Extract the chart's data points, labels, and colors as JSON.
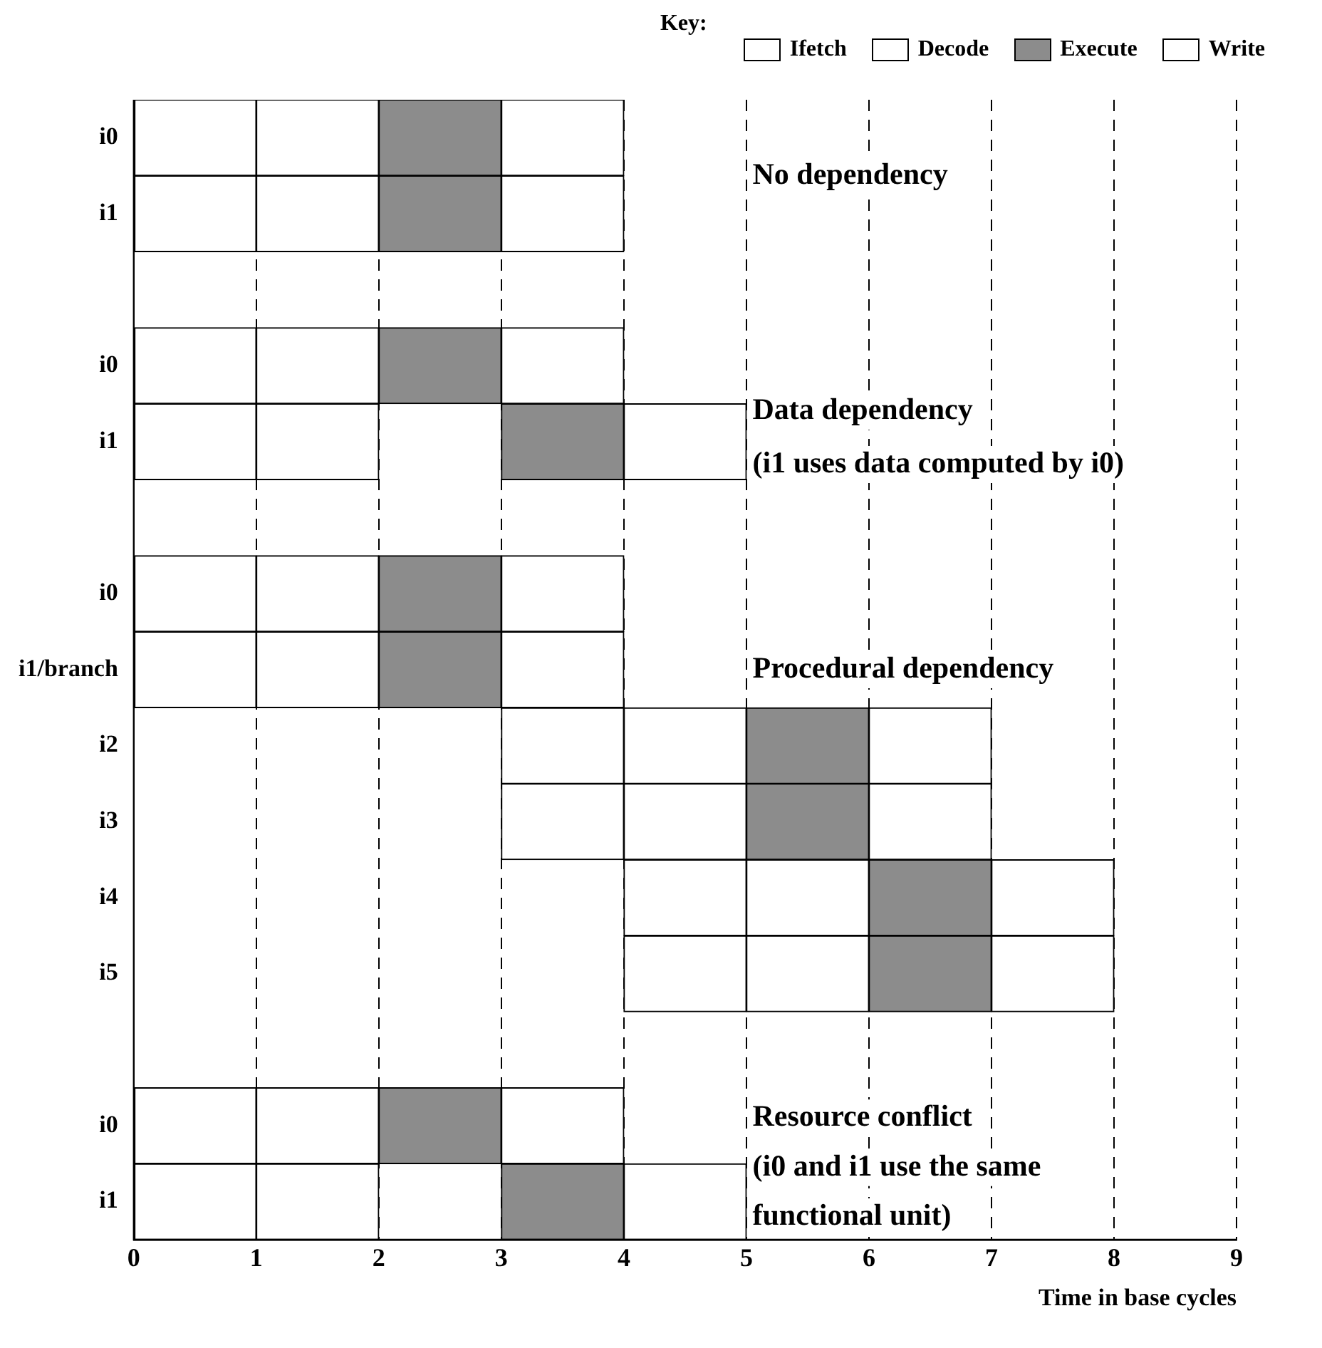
{
  "chart_data": {
    "type": "bar",
    "orientation": "horizontal",
    "stacked": false,
    "categories": [
      "i0",
      "i1",
      null,
      "i0",
      "i1",
      null,
      "i0",
      "i1/branch",
      "i2",
      "i3",
      "i4",
      "i5",
      null,
      "i0",
      "i1"
    ],
    "series": [
      {
        "name": "Ifetch",
        "color": "#ffffff",
        "values": [
          1,
          1,
          null,
          1,
          1,
          null,
          1,
          1,
          1,
          1,
          1,
          1,
          null,
          1,
          1
        ],
        "base": [
          0,
          0,
          null,
          0,
          0,
          null,
          0,
          0,
          3,
          3,
          4,
          4,
          null,
          0,
          0
        ]
      },
      {
        "name": "Decode",
        "color": "#ffffff",
        "values": [
          1,
          1,
          null,
          1,
          1,
          null,
          1,
          1,
          1,
          1,
          1,
          1,
          null,
          1,
          1
        ],
        "base": [
          1,
          1,
          null,
          1,
          1,
          null,
          1,
          1,
          4,
          4,
          5,
          5,
          null,
          1,
          1
        ]
      },
      {
        "name": "Execute",
        "color": "#8c8c8c",
        "values": [
          1,
          1,
          null,
          1,
          1,
          null,
          1,
          1,
          1,
          1,
          1,
          1,
          null,
          1,
          1
        ],
        "base": [
          2,
          2,
          null,
          2,
          3,
          null,
          2,
          2,
          5,
          5,
          6,
          6,
          null,
          2,
          3
        ]
      },
      {
        "name": "Write",
        "color": "#ffffff",
        "values": [
          1,
          1,
          null,
          1,
          1,
          null,
          1,
          1,
          1,
          1,
          1,
          1,
          null,
          1,
          1
        ],
        "base": [
          3,
          3,
          null,
          3,
          4,
          null,
          3,
          3,
          6,
          6,
          7,
          7,
          null,
          3,
          4
        ]
      }
    ],
    "xlim": [
      0,
      9
    ],
    "xticks": [
      0,
      1,
      2,
      3,
      4,
      5,
      6,
      7,
      8,
      9
    ],
    "xlabel": "Time in base cycles",
    "grid": "x",
    "legend": "top right",
    "legend_title": "Key:",
    "annotations": [
      "No dependency",
      "Data dependency",
      "(i1 uses data computed by i0)",
      "Procedural dependency",
      "Resource conflict",
      "(i0 and i1 use the same",
      "functional unit)"
    ]
  }
}
